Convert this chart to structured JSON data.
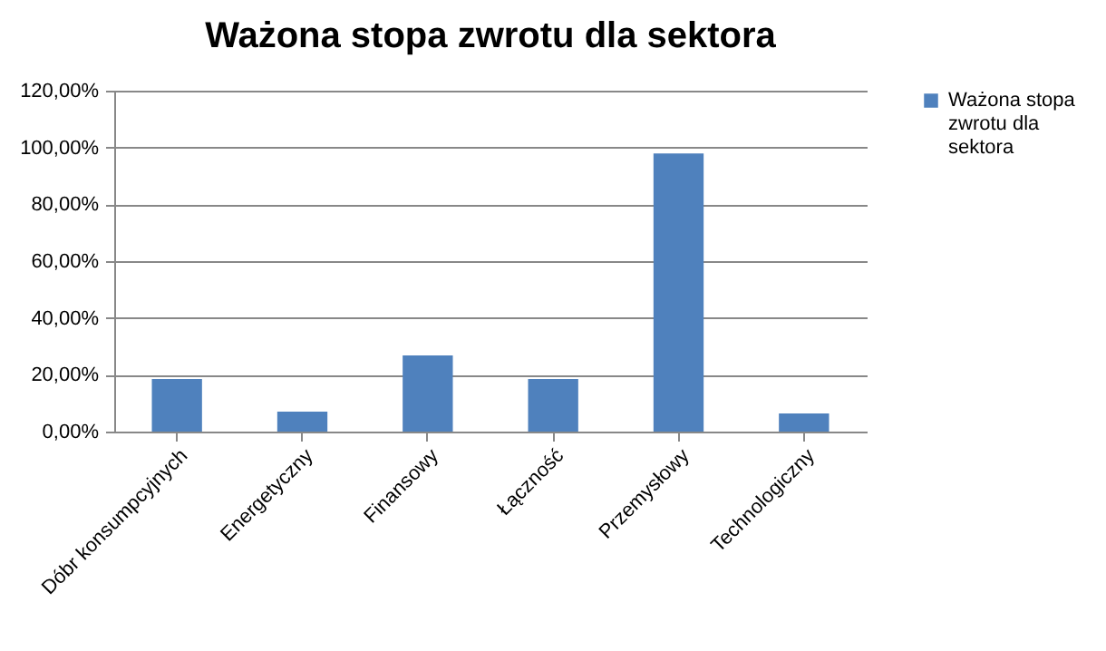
{
  "chart_data": {
    "type": "bar",
    "title": "Ważona stopa zwrotu dla sektora",
    "categories": [
      "Dóbr konsumpcyjnych",
      "Energetyczny",
      "Finansowy",
      "Łączność",
      "Przemysłowy",
      "Technologiczny"
    ],
    "series": [
      {
        "name": "Ważona stopa zwrotu dla sektora",
        "color": "#4f81bd",
        "values": [
          18.5,
          7.0,
          26.8,
          18.5,
          97.9,
          6.4
        ]
      }
    ],
    "ylim": [
      0,
      120
    ],
    "yticks": [
      {
        "value": 0,
        "label": "0,00%"
      },
      {
        "value": 20,
        "label": "20,00%"
      },
      {
        "value": 40,
        "label": "40,00%"
      },
      {
        "value": 60,
        "label": "60,00%"
      },
      {
        "value": 80,
        "label": "80,00%"
      },
      {
        "value": 100,
        "label": "100,00%"
      },
      {
        "value": 120,
        "label": "120,00%"
      }
    ],
    "grid": "y",
    "legend": "right"
  }
}
